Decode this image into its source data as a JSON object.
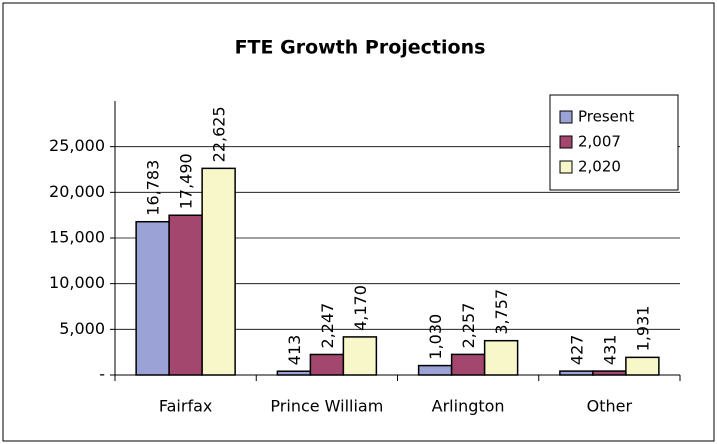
{
  "chart_data": {
    "type": "bar",
    "title": "FTE Growth Projections",
    "categories": [
      "Fairfax",
      "Prince William",
      "Arlington",
      "Other"
    ],
    "series": [
      {
        "name": "Present",
        "color": "#9ba3d6",
        "values": [
          16783,
          413,
          1030,
          427
        ],
        "value_labels": [
          "16,783",
          "413",
          "1,030",
          "427"
        ]
      },
      {
        "name": "2,007",
        "color": "#a3476e",
        "values": [
          17490,
          2247,
          2257,
          431
        ],
        "value_labels": [
          "17,490",
          "2,247",
          "2,257",
          "431"
        ]
      },
      {
        "name": "2,020",
        "color": "#f7f7c9",
        "values": [
          22625,
          4170,
          3757,
          1931
        ],
        "value_labels": [
          "22,625",
          "4,170",
          "3,757",
          "1,931"
        ]
      }
    ],
    "ylim": [
      0,
      30000
    ],
    "yticks": [
      {
        "value": 0,
        "label": "-"
      },
      {
        "value": 5000,
        "label": "5,000"
      },
      {
        "value": 10000,
        "label": "10,000"
      },
      {
        "value": 15000,
        "label": "15,000"
      },
      {
        "value": 20000,
        "label": "20,000"
      },
      {
        "value": 25000,
        "label": "25,000"
      }
    ],
    "grid": true,
    "legend": "top-right"
  }
}
